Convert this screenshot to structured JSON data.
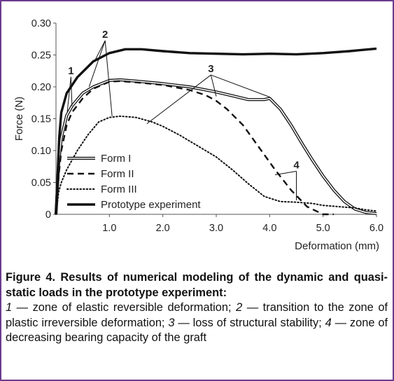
{
  "chart_data": {
    "type": "line",
    "title": "",
    "xlabel": "Deformation (mm)",
    "ylabel": "Force (N)",
    "xlim": [
      0,
      6
    ],
    "ylim": [
      0,
      0.3
    ],
    "x_ticks": [
      "1.0",
      "2.0",
      "3.0",
      "4.0",
      "5.0",
      "6.0"
    ],
    "y_ticks": [
      "0",
      "0.05",
      "0.10",
      "0.15",
      "0.20",
      "0.25",
      "0.30"
    ],
    "grid": false,
    "legend_position": "bottom-left",
    "series": [
      {
        "name": "Form I",
        "style": "double",
        "x": [
          0,
          0.05,
          0.1,
          0.2,
          0.3,
          0.5,
          0.7,
          1.0,
          1.2,
          1.5,
          2.0,
          2.5,
          3.0,
          3.3,
          3.6,
          3.9,
          4.0,
          4.2,
          4.4,
          4.6,
          4.8,
          5.0,
          5.2,
          5.4,
          5.6,
          5.8,
          6.0
        ],
        "y": [
          0,
          0.08,
          0.12,
          0.155,
          0.17,
          0.19,
          0.2,
          0.21,
          0.211,
          0.209,
          0.205,
          0.2,
          0.192,
          0.186,
          0.18,
          0.18,
          0.182,
          0.165,
          0.14,
          0.112,
          0.085,
          0.06,
          0.038,
          0.02,
          0.008,
          0.003,
          0.001
        ]
      },
      {
        "name": "Form II",
        "style": "dashed",
        "x": [
          0,
          0.05,
          0.1,
          0.2,
          0.3,
          0.5,
          0.7,
          1.0,
          1.2,
          1.5,
          2.0,
          2.5,
          2.8,
          3.0,
          3.2,
          3.5,
          3.8,
          4.1,
          4.4,
          4.7,
          5.0,
          5.2
        ],
        "y": [
          0,
          0.06,
          0.1,
          0.14,
          0.16,
          0.182,
          0.197,
          0.208,
          0.209,
          0.207,
          0.203,
          0.195,
          0.187,
          0.178,
          0.165,
          0.14,
          0.105,
          0.07,
          0.038,
          0.012,
          0,
          0
        ]
      },
      {
        "name": "Form III",
        "style": "dotted",
        "x": [
          0,
          0.05,
          0.1,
          0.2,
          0.4,
          0.6,
          0.8,
          1.0,
          1.2,
          1.5,
          1.8,
          2.0,
          2.3,
          2.6,
          3.0,
          3.3,
          3.6,
          3.9,
          4.2,
          4.5,
          4.8,
          5.0,
          5.3,
          5.6,
          5.8,
          6.0
        ],
        "y": [
          0,
          0.035,
          0.05,
          0.07,
          0.1,
          0.125,
          0.145,
          0.152,
          0.154,
          0.152,
          0.145,
          0.138,
          0.125,
          0.11,
          0.09,
          0.07,
          0.048,
          0.028,
          0.02,
          0.019,
          0.017,
          0.014,
          0.012,
          0.01,
          0.007,
          0.005
        ]
      },
      {
        "name": "Prototype experiment",
        "style": "solid",
        "x": [
          0,
          0.03,
          0.06,
          0.1,
          0.2,
          0.4,
          0.7,
          1.0,
          1.3,
          1.6,
          2.0,
          2.5,
          3.0,
          3.5,
          4.0,
          4.5,
          5.0,
          5.5,
          6.0
        ],
        "y": [
          0,
          0.06,
          0.12,
          0.16,
          0.19,
          0.215,
          0.24,
          0.253,
          0.259,
          0.259,
          0.256,
          0.253,
          0.252,
          0.251,
          0.252,
          0.251,
          0.253,
          0.256,
          0.26
        ]
      }
    ],
    "annotations": [
      {
        "label": "1",
        "text_at": [
          0.28,
          0.22
        ],
        "targets": [
          [
            0.21,
            0.16
          ],
          [
            0.3,
            0.17
          ]
        ]
      },
      {
        "label": "2",
        "text_at": [
          0.92,
          0.277
        ],
        "targets": [
          [
            0.62,
            0.2
          ],
          [
            0.72,
            0.24
          ],
          [
            1.05,
            0.154
          ]
        ]
      },
      {
        "label": "3",
        "text_at": [
          2.9,
          0.223
        ],
        "targets": [
          [
            1.7,
            0.142
          ],
          [
            3.0,
            0.185
          ],
          [
            4.0,
            0.184
          ]
        ]
      },
      {
        "label": "4",
        "text_at": [
          4.5,
          0.072
        ],
        "targets": [
          [
            4.1,
            0.062
          ],
          [
            4.5,
            0.022
          ]
        ]
      }
    ]
  },
  "caption": {
    "title": "Figure 4. Results of numerical modeling of the dynamic and quasi-static loads in the prototype experiment:",
    "items": [
      {
        "num": "1",
        "text": " — zone of elastic reversible deformation; "
      },
      {
        "num": "2",
        "text": " — transition to the zone of plastic irreversible deformation; "
      },
      {
        "num": "3",
        "text": " — loss of structural stability; "
      },
      {
        "num": "4",
        "text": " — zone of decreasing bearing capacity of the graft"
      }
    ]
  }
}
